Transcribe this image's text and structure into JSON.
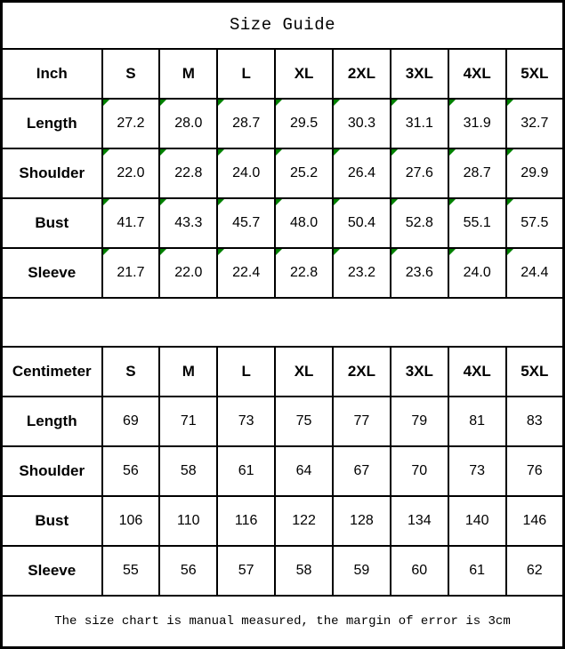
{
  "title": "Size Guide",
  "footer_note": "The size chart is manual measured, the margin of error is 3cm",
  "colors": {
    "border": "#000000",
    "text": "#000000",
    "background": "#ffffff",
    "corner_flag_green": "#008000"
  },
  "chart_data": [
    {
      "type": "table",
      "title": "Size Guide (Inch)",
      "unit_label": "Inch",
      "size_headers": [
        "S",
        "M",
        "L",
        "XL",
        "2XL",
        "3XL",
        "4XL",
        "5XL"
      ],
      "rows": [
        {
          "label": "Length",
          "values": [
            "27.2",
            "28.0",
            "28.7",
            "29.5",
            "30.3",
            "31.1",
            "31.9",
            "32.7"
          ]
        },
        {
          "label": "Shoulder",
          "values": [
            "22.0",
            "22.8",
            "24.0",
            "25.2",
            "26.4",
            "27.6",
            "28.7",
            "29.9"
          ]
        },
        {
          "label": "Bust",
          "values": [
            "41.7",
            "43.3",
            "45.7",
            "48.0",
            "50.4",
            "52.8",
            "55.1",
            "57.5"
          ]
        },
        {
          "label": "Sleeve",
          "values": [
            "21.7",
            "22.0",
            "22.4",
            "22.8",
            "23.2",
            "23.6",
            "24.0",
            "24.4"
          ]
        }
      ],
      "cell_corner_flags": true
    },
    {
      "type": "table",
      "title": "Size Guide (Centimeter)",
      "unit_label": "Centimeter",
      "size_headers": [
        "S",
        "M",
        "L",
        "XL",
        "2XL",
        "3XL",
        "4XL",
        "5XL"
      ],
      "rows": [
        {
          "label": "Length",
          "values": [
            "69",
            "71",
            "73",
            "75",
            "77",
            "79",
            "81",
            "83"
          ]
        },
        {
          "label": "Shoulder",
          "values": [
            "56",
            "58",
            "61",
            "64",
            "67",
            "70",
            "73",
            "76"
          ]
        },
        {
          "label": "Bust",
          "values": [
            "106",
            "110",
            "116",
            "122",
            "128",
            "134",
            "140",
            "146"
          ]
        },
        {
          "label": "Sleeve",
          "values": [
            "55",
            "56",
            "57",
            "58",
            "59",
            "60",
            "61",
            "62"
          ]
        }
      ],
      "cell_corner_flags": false
    }
  ]
}
